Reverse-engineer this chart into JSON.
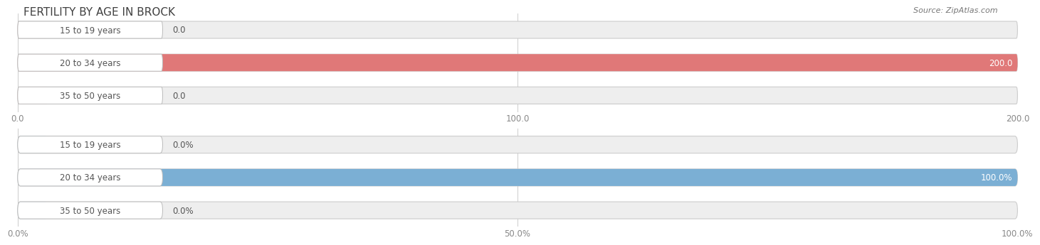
{
  "title": "FERTILITY BY AGE IN BROCK",
  "source": "Source: ZipAtlas.com",
  "top_chart": {
    "categories": [
      "15 to 19 years",
      "20 to 34 years",
      "35 to 50 years"
    ],
    "values": [
      0.0,
      200.0,
      0.0
    ],
    "xlim": [
      0,
      200
    ],
    "xticks": [
      0.0,
      100.0,
      200.0
    ],
    "xtick_labels": [
      "0.0",
      "100.0",
      "200.0"
    ],
    "bar_color": "#E07878",
    "bar_bg_color": "#EEEEEE",
    "value_labels": [
      "0.0",
      "200.0",
      "0.0"
    ]
  },
  "bottom_chart": {
    "categories": [
      "15 to 19 years",
      "20 to 34 years",
      "35 to 50 years"
    ],
    "values": [
      0.0,
      100.0,
      0.0
    ],
    "xlim": [
      0,
      100
    ],
    "xticks": [
      0.0,
      50.0,
      100.0
    ],
    "xtick_labels": [
      "0.0%",
      "50.0%",
      "100.0%"
    ],
    "bar_color": "#7BAFD4",
    "bar_bg_color": "#EEEEEE",
    "value_labels": [
      "0.0%",
      "100.0%",
      "0.0%"
    ]
  },
  "title_color": "#404040",
  "label_color": "#555555",
  "background_color": "#FFFFFF",
  "title_fontsize": 11,
  "label_fontsize": 8.5,
  "tick_fontsize": 8.5
}
